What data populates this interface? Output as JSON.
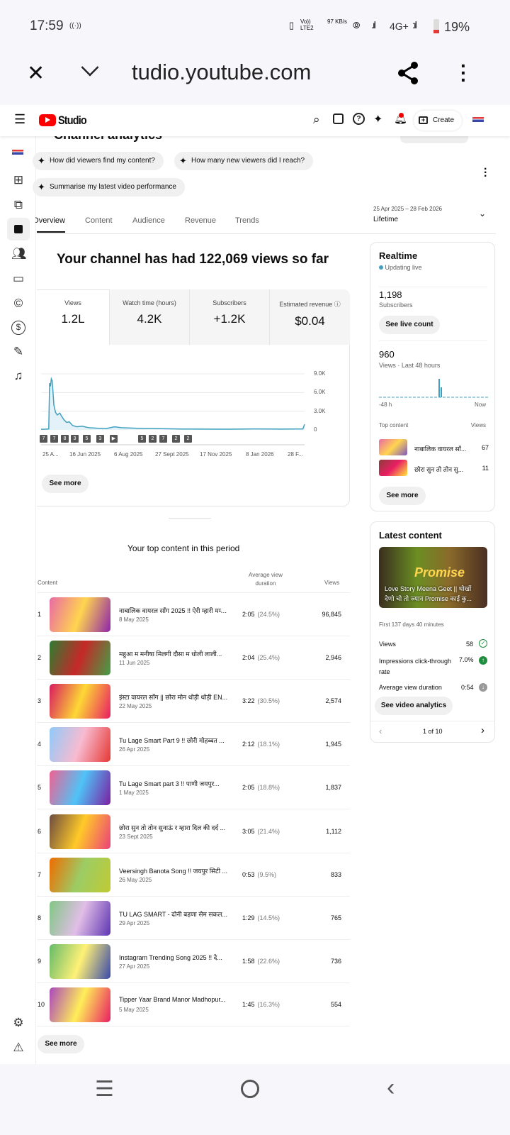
{
  "status_bar": {
    "time": "17:59",
    "hotspot_icon": "broadcast-icon",
    "volte": "Vo)) LTE2",
    "speed": "97 KB/s",
    "network": "4G+",
    "battery": "19%"
  },
  "browser": {
    "url": "tudio.youtube.com",
    "close_icon": "close-icon",
    "chevron_icon": "chevron-down-icon",
    "share_icon": "share-icon",
    "menu_icon": "more-vert-icon"
  },
  "header": {
    "logo_text": "Studio",
    "create_label": "Create",
    "brand_color": "#ff0000"
  },
  "page": {
    "title": "Channel analytics"
  },
  "suggestions": [
    "How did viewers find my content?",
    "How many new viewers did I reach?",
    "Summarise my latest video performance"
  ],
  "tabs": [
    "Overview",
    "Content",
    "Audience",
    "Revenue",
    "Trends"
  ],
  "date_range": {
    "range": "25 Apr 2025 – 28 Feb 2026",
    "label": "Lifetime"
  },
  "overview": {
    "headline": "Your channel has had 122,069 views so far",
    "metrics": [
      {
        "label": "Views",
        "value": "1.2L"
      },
      {
        "label": "Watch time (hours)",
        "value": "4.2K"
      },
      {
        "label": "Subscribers",
        "value": "+1.2K"
      },
      {
        "label": "Estimated revenue",
        "value": "$0.04"
      }
    ],
    "see_more": "See more"
  },
  "chart_data": {
    "type": "area",
    "color": "#41a0c0",
    "ylim": [
      0,
      9000
    ],
    "yticks": [
      "9.0K",
      "6.0K",
      "3.0K",
      "0"
    ],
    "xticks": [
      "25 A...",
      "16 Jun 2025",
      "6 Aug 2025",
      "27 Sept 2025",
      "17 Nov 2025",
      "8 Jan 2026",
      "28 F..."
    ],
    "x": [
      "2025-04-25",
      "2025-04-30",
      "2025-05-04",
      "2025-05-05",
      "2025-05-06",
      "2025-05-07",
      "2025-05-08",
      "2025-05-09",
      "2025-05-10",
      "2025-05-12",
      "2025-05-14",
      "2025-05-17",
      "2025-05-19",
      "2025-05-22",
      "2025-05-25",
      "2025-05-28",
      "2025-06-01",
      "2025-06-06",
      "2025-06-12",
      "2025-06-20",
      "2025-07-01",
      "2025-07-10",
      "2025-07-20",
      "2025-07-28",
      "2025-08-10",
      "2025-08-25",
      "2025-09-10",
      "2025-10-01",
      "2025-11-01",
      "2025-12-01",
      "2026-01-01",
      "2026-02-01",
      "2026-02-26",
      "2026-02-28"
    ],
    "values": [
      100,
      120,
      150,
      7500,
      7000,
      8200,
      7900,
      6000,
      4000,
      2800,
      2400,
      2700,
      2200,
      1600,
      1200,
      1300,
      700,
      500,
      600,
      350,
      250,
      200,
      500,
      350,
      280,
      220,
      200,
      150,
      130,
      120,
      150,
      130,
      150,
      900
    ],
    "upload_markers": [
      "7",
      "7",
      "8",
      "3",
      "5",
      "3",
      "▶",
      "5",
      "2",
      "7",
      "2",
      "2"
    ]
  },
  "realtime": {
    "title": "Realtime",
    "status": "Updating live",
    "subs_value": "1,198",
    "subs_label": "Subscribers",
    "live_btn": "See live count",
    "views_value": "960",
    "views_label": "Views · Last 48 hours",
    "start": "-48 h",
    "end": "Now",
    "top_label": "Top content",
    "views_col": "Views",
    "items": [
      {
        "title": "नाबालिक वायरल सॉ...",
        "views": "67"
      },
      {
        "title": "छोरा सुन तो तोन सु...",
        "views": "11"
      }
    ],
    "see_more": "See more"
  },
  "latest": {
    "title": "Latest content",
    "video_title": "Love Story Meena Geet || धोखों देणो चो तो ज्यान Promise काई कु...",
    "period": "First 137 days 40 minutes",
    "stats": [
      {
        "label": "Views",
        "value": "58",
        "icon": "check-circle-icon"
      },
      {
        "label": "Impressions click-through rate",
        "value": "7.0%",
        "icon": "arrow-up-circle-icon"
      },
      {
        "label": "Average view duration",
        "value": "0:54",
        "icon": "arrow-down-circle-icon"
      }
    ],
    "button": "See video analytics",
    "pager": "1 of 10"
  },
  "top_content": {
    "title": "Your top content in this period",
    "col_content": "Content",
    "col_duration": "Average view duration",
    "col_views": "Views",
    "rows": [
      {
        "n": "1",
        "title": "नाबालिक वायरल सॉंग 2025 !! ऐरी म्हारी मम्मी...",
        "date": "8 May 2025",
        "dur": "2:05",
        "pct": "(24.5%)",
        "views": "96,845"
      },
      {
        "n": "2",
        "title": "महुआ म मनीषा मिलगी दौसा म धोली लाली...",
        "date": "11 Jun 2025",
        "dur": "2:04",
        "pct": "(25.4%)",
        "views": "2,946"
      },
      {
        "n": "3",
        "title": "इंस्टा वायरल सॉंग || छोरा मोन थोड़ी थोड़ी EN...",
        "date": "22 May 2025",
        "dur": "3:22",
        "pct": "(30.5%)",
        "views": "2,574"
      },
      {
        "n": "4",
        "title": "Tu Lage Smart Part 9 !! छोरी मोहब्बत ...",
        "date": "26 Apr 2025",
        "dur": "2:12",
        "pct": "(18.1%)",
        "views": "1,945"
      },
      {
        "n": "5",
        "title": "Tu Lage Smart part 3 !! पाणी जयपुर...",
        "date": "1 May 2025",
        "dur": "2:05",
        "pct": "(18.8%)",
        "views": "1,837"
      },
      {
        "n": "6",
        "title": "छोरा सुन तो तोन सुनाऊं र म्हारा दिल की दर्द ...",
        "date": "23 Sept 2025",
        "dur": "3:05",
        "pct": "(21.4%)",
        "views": "1,112"
      },
      {
        "n": "7",
        "title": "Veersingh Banota Song !! जयपुर सिटी ...",
        "date": "26 May 2025",
        "dur": "0:53",
        "pct": "(9.5%)",
        "views": "833"
      },
      {
        "n": "8",
        "title": "TU LAG SMART - दोनी बहणा सेम सकल...",
        "date": "29 Apr 2025",
        "dur": "1:29",
        "pct": "(14.5%)",
        "views": "765"
      },
      {
        "n": "9",
        "title": "Instagram Trending Song 2025 !! दे...",
        "date": "27 Apr 2025",
        "dur": "1:58",
        "pct": "(22.6%)",
        "views": "736"
      },
      {
        "n": "10",
        "title": "Tipper Yaar Brand Manor Madhopur...",
        "date": "5 May 2025",
        "dur": "1:45",
        "pct": "(16.3%)",
        "views": "554"
      }
    ],
    "see_more": "See more"
  }
}
